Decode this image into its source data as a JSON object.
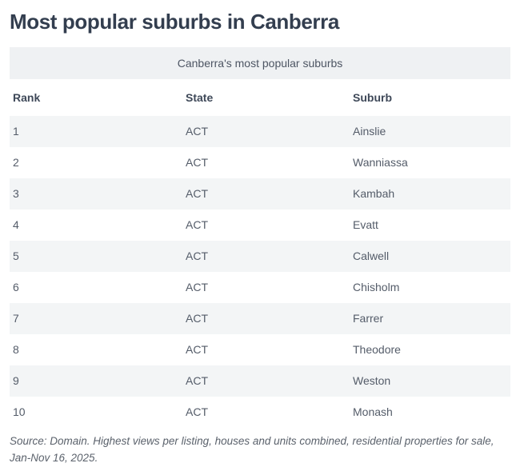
{
  "page": {
    "title": "Most popular suburbs in Canberra"
  },
  "table": {
    "caption": "Canberra's most popular suburbs",
    "columns": [
      "Rank",
      "State",
      "Suburb"
    ],
    "rows": [
      {
        "rank": "1",
        "state": "ACT",
        "suburb": "Ainslie"
      },
      {
        "rank": "2",
        "state": "ACT",
        "suburb": "Wanniassa"
      },
      {
        "rank": "3",
        "state": "ACT",
        "suburb": "Kambah"
      },
      {
        "rank": "4",
        "state": "ACT",
        "suburb": "Evatt"
      },
      {
        "rank": "5",
        "state": "ACT",
        "suburb": "Calwell"
      },
      {
        "rank": "6",
        "state": "ACT",
        "suburb": "Chisholm"
      },
      {
        "rank": "7",
        "state": "ACT",
        "suburb": "Farrer"
      },
      {
        "rank": "8",
        "state": "ACT",
        "suburb": "Theodore"
      },
      {
        "rank": "9",
        "state": "ACT",
        "suburb": "Weston"
      },
      {
        "rank": "10",
        "state": "ACT",
        "suburb": "Monash"
      }
    ],
    "source": "Source: Domain. Highest views per listing, houses and units combined, residential properties for sale, Jan-Nov 16, 2025."
  },
  "colors": {
    "title_text": "#333e4f",
    "caption_bar_bg": "#eff1f3",
    "caption_text": "#4d5563",
    "header_text": "#3e4858",
    "cell_text": "#545c69",
    "row_stripe_bg": "#f3f5f6",
    "source_text": "#5b626c",
    "background": "#ffffff"
  },
  "chart_data": {
    "type": "table",
    "title": "Most popular suburbs in Canberra",
    "subtitle": "Canberra's most popular suburbs",
    "columns": [
      "Rank",
      "State",
      "Suburb"
    ],
    "rows": [
      [
        "1",
        "ACT",
        "Ainslie"
      ],
      [
        "2",
        "ACT",
        "Wanniassa"
      ],
      [
        "3",
        "ACT",
        "Kambah"
      ],
      [
        "4",
        "ACT",
        "Evatt"
      ],
      [
        "5",
        "ACT",
        "Calwell"
      ],
      [
        "6",
        "ACT",
        "Chisholm"
      ],
      [
        "7",
        "ACT",
        "Farrer"
      ],
      [
        "8",
        "ACT",
        "Theodore"
      ],
      [
        "9",
        "ACT",
        "Weston"
      ],
      [
        "10",
        "ACT",
        "Monash"
      ]
    ],
    "source_note": "Source: Domain. Highest views per listing, houses and units combined, residential properties for sale, Jan-Nov 16, 2025.",
    "layout_hints": {
      "striped_rows": "odd rows shaded",
      "caption_position": "centered bar above header",
      "grid": false
    }
  }
}
